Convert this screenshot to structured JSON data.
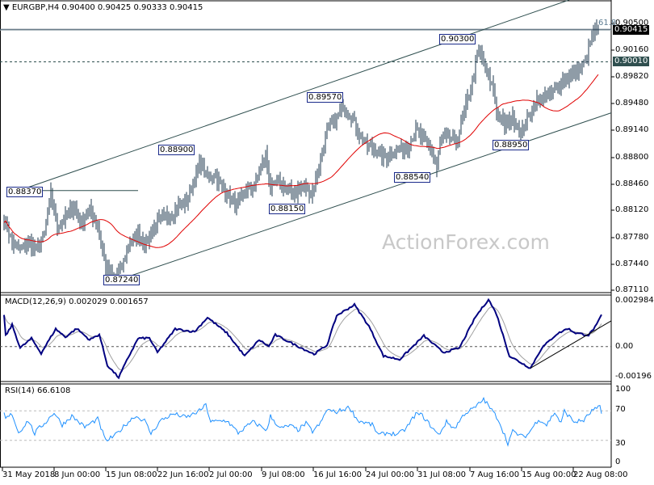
{
  "header": {
    "symbol": "EURGBP,H4",
    "ohlc": "0.90400 0.90425 0.90333 0.90415",
    "macd_title": "MACD(12,26,9) 0.002029 0.001657",
    "rsi_title": "RSI(14) 66.6108",
    "fib_label": "61.8"
  },
  "watermark": "ActionForex.com",
  "price_axis": [
    "0.90500",
    "0.90160",
    "0.89820",
    "0.89480",
    "0.89140",
    "0.88800",
    "0.88460",
    "0.88120",
    "0.87780",
    "0.87440",
    "0.87110"
  ],
  "current_price": "0.90415",
  "level_price": "0.90010",
  "macd_axis": {
    "top": "0.002984",
    "zero": "0.00",
    "bottom": "-0.00196"
  },
  "rsi_axis": [
    "100",
    "70",
    "30",
    "0"
  ],
  "time_axis": [
    "31 May 2018",
    "8 Jun 00:00",
    "15 Jun 08:00",
    "22 Jun 16:00",
    "2 Jul 00:00",
    "9 Jul 08:00",
    "16 Jul 16:00",
    "24 Jul 00:00",
    "31 Jul 08:00",
    "7 Aug 16:00",
    "15 Aug 00:00",
    "22 Aug 08:00"
  ],
  "annotations": [
    "0.88370",
    "0.88900",
    "0.88150",
    "0.87240",
    "0.89570",
    "0.90300",
    "0.88540",
    "0.88950"
  ],
  "colors": {
    "bars": "#1f3a4f",
    "ma": "#e00000",
    "macd": "#000080",
    "signal": "#a0a0a0",
    "rsi": "#1e90ff",
    "current_price_bg": "#000000",
    "level_bg": "#2f4f4f"
  },
  "chart_data": [
    {
      "type": "ohlc",
      "title": "EURGBP,H4",
      "ylim": [
        0.8711,
        0.905
      ],
      "closes": [
        [
          0,
          0.8802
        ],
        [
          5,
          0.8771
        ],
        [
          10,
          0.8761
        ],
        [
          15,
          0.8771
        ],
        [
          20,
          0.8761
        ],
        [
          25,
          0.8781
        ],
        [
          29,
          0.8833
        ],
        [
          33,
          0.8792
        ],
        [
          38,
          0.8802
        ],
        [
          43,
          0.8817
        ],
        [
          48,
          0.8797
        ],
        [
          53,
          0.8812
        ],
        [
          58,
          0.8792
        ],
        [
          63,
          0.874
        ],
        [
          68,
          0.8725
        ],
        [
          73,
          0.874
        ],
        [
          78,
          0.8771
        ],
        [
          83,
          0.8781
        ],
        [
          88,
          0.8771
        ],
        [
          93,
          0.8792
        ],
        [
          98,
          0.8802
        ],
        [
          103,
          0.8807
        ],
        [
          108,
          0.8817
        ],
        [
          113,
          0.8822
        ],
        [
          118,
          0.8853
        ],
        [
          122,
          0.8873
        ],
        [
          125,
          0.8853
        ],
        [
          130,
          0.8858
        ],
        [
          135,
          0.8843
        ],
        [
          140,
          0.8828
        ],
        [
          145,
          0.8817
        ],
        [
          150,
          0.8838
        ],
        [
          155,
          0.8843
        ],
        [
          162,
          0.8884
        ],
        [
          165,
          0.8838
        ],
        [
          170,
          0.8848
        ],
        [
          175,
          0.8838
        ],
        [
          180,
          0.8833
        ],
        [
          185,
          0.8843
        ],
        [
          190,
          0.8833
        ],
        [
          195,
          0.8864
        ],
        [
          200,
          0.8915
        ],
        [
          205,
          0.8925
        ],
        [
          210,
          0.8946
        ],
        [
          215,
          0.8931
        ],
        [
          220,
          0.891
        ],
        [
          225,
          0.8894
        ],
        [
          230,
          0.8889
        ],
        [
          235,
          0.8879
        ],
        [
          240,
          0.8884
        ],
        [
          245,
          0.8889
        ],
        [
          250,
          0.8894
        ],
        [
          255,
          0.8915
        ],
        [
          260,
          0.89
        ],
        [
          265,
          0.8889
        ],
        [
          268,
          0.8864
        ],
        [
          270,
          0.89
        ],
        [
          275,
          0.8905
        ],
        [
          280,
          0.89
        ],
        [
          285,
          0.8936
        ],
        [
          290,
          0.8977
        ],
        [
          294,
          0.9018
        ],
        [
          298,
          0.8992
        ],
        [
          303,
          0.8967
        ],
        [
          305,
          0.8936
        ],
        [
          310,
          0.892
        ],
        [
          315,
          0.8931
        ],
        [
          320,
          0.891
        ],
        [
          325,
          0.8931
        ],
        [
          330,
          0.8951
        ],
        [
          335,
          0.8956
        ],
        [
          340,
          0.8961
        ],
        [
          345,
          0.8977
        ],
        [
          350,
          0.8982
        ],
        [
          355,
          0.8987
        ],
        [
          360,
          0.9003
        ],
        [
          365,
          0.9039
        ],
        [
          368,
          0.9042
        ]
      ],
      "levels": {
        "current": 0.90415,
        "horizontal_dashed": 0.9001
      },
      "channel_upper": [
        [
          5,
          0.8834
        ],
        [
          350,
          0.908
        ]
      ],
      "channel_lower": [
        [
          65,
          0.8719
        ],
        [
          376,
          0.8936
        ]
      ],
      "short_line": [
        [
          3,
          0.8837
        ],
        [
          83,
          0.8837
        ]
      ]
    },
    {
      "type": "line",
      "title": "MACD(12,26,9)",
      "ylim": [
        -0.00196,
        0.002984
      ],
      "macd": [
        [
          1,
          0.00069
        ],
        [
          5,
          0.00139
        ],
        [
          10,
          -9e-05
        ],
        [
          17,
          0.00052
        ],
        [
          23,
          -0.00043
        ],
        [
          32,
          0.00113
        ],
        [
          38,
          0.00061
        ],
        [
          45,
          0.00116
        ],
        [
          53,
          0.00043
        ],
        [
          59,
          0.00078
        ],
        [
          64,
          -0.00121
        ],
        [
          71,
          -0.00199
        ],
        [
          77,
          -0.00069
        ],
        [
          83,
          0.00052
        ],
        [
          90,
          0.00055
        ],
        [
          95,
          -0.00038
        ],
        [
          106,
          0.00113
        ],
        [
          118,
          0.00095
        ],
        [
          126,
          0.00187
        ],
        [
          138,
          0.00087
        ],
        [
          149,
          -0.00061
        ],
        [
          158,
          0.00043
        ],
        [
          164,
          0
        ],
        [
          168,
          0.00075
        ],
        [
          179,
          0.00017
        ],
        [
          192,
          -0.00049
        ],
        [
          200,
          9e-05
        ],
        [
          206,
          0.00199
        ],
        [
          217,
          0.00269
        ],
        [
          226,
          0.0013
        ],
        [
          235,
          -0.00061
        ],
        [
          245,
          -0.00083
        ],
        [
          260,
          0.00069
        ],
        [
          272,
          -0.00038
        ],
        [
          282,
          -9e-05
        ],
        [
          292,
          0.00191
        ],
        [
          300,
          0.00303
        ],
        [
          305,
          0.00208
        ],
        [
          313,
          -0.00061
        ],
        [
          326,
          -0.00139
        ],
        [
          333,
          -9e-05
        ],
        [
          342,
          0.00078
        ],
        [
          349,
          0.00116
        ],
        [
          354,
          0.00087
        ],
        [
          362,
          0.00073
        ],
        [
          367,
          0.00139
        ],
        [
          370,
          0.00203
        ]
      ],
      "trendline": [
        [
          326,
          -0.00139
        ],
        [
          376,
          0.00165
        ]
      ]
    },
    {
      "type": "line",
      "title": "RSI(14)",
      "ylim": [
        0,
        100
      ],
      "levels": [
        70,
        30
      ],
      "rsi": [
        [
          1,
          59
        ],
        [
          5,
          66
        ],
        [
          9,
          40
        ],
        [
          15,
          57
        ],
        [
          19,
          39
        ],
        [
          21,
          45
        ],
        [
          26,
          55
        ],
        [
          31,
          68
        ],
        [
          36,
          51
        ],
        [
          42,
          63
        ],
        [
          50,
          48
        ],
        [
          58,
          59
        ],
        [
          63,
          29
        ],
        [
          69,
          37
        ],
        [
          76,
          53
        ],
        [
          81,
          63
        ],
        [
          87,
          57
        ],
        [
          91,
          39
        ],
        [
          97,
          57
        ],
        [
          105,
          66
        ],
        [
          113,
          61
        ],
        [
          121,
          70
        ],
        [
          125,
          78
        ],
        [
          128,
          55
        ],
        [
          138,
          57
        ],
        [
          145,
          40
        ],
        [
          154,
          55
        ],
        [
          163,
          44
        ],
        [
          165,
          63
        ],
        [
          171,
          46
        ],
        [
          177,
          50
        ],
        [
          182,
          44
        ],
        [
          187,
          53
        ],
        [
          191,
          42
        ],
        [
          196,
          53
        ],
        [
          200,
          72
        ],
        [
          205,
          68
        ],
        [
          214,
          75
        ],
        [
          219,
          57
        ],
        [
          228,
          51
        ],
        [
          232,
          37
        ],
        [
          237,
          40
        ],
        [
          244,
          38
        ],
        [
          249,
          46
        ],
        [
          255,
          66
        ],
        [
          259,
          64
        ],
        [
          263,
          53
        ],
        [
          269,
          37
        ],
        [
          274,
          55
        ],
        [
          279,
          46
        ],
        [
          285,
          66
        ],
        [
          292,
          75
        ],
        [
          297,
          86
        ],
        [
          301,
          74
        ],
        [
          306,
          59
        ],
        [
          312,
          26
        ],
        [
          315,
          42
        ],
        [
          321,
          35
        ],
        [
          324,
          37
        ],
        [
          331,
          59
        ],
        [
          336,
          51
        ],
        [
          341,
          68
        ],
        [
          345,
          53
        ],
        [
          347,
          70
        ],
        [
          353,
          55
        ],
        [
          359,
          57
        ],
        [
          364,
          70
        ],
        [
          369,
          75
        ],
        [
          370,
          66.6
        ]
      ]
    }
  ]
}
